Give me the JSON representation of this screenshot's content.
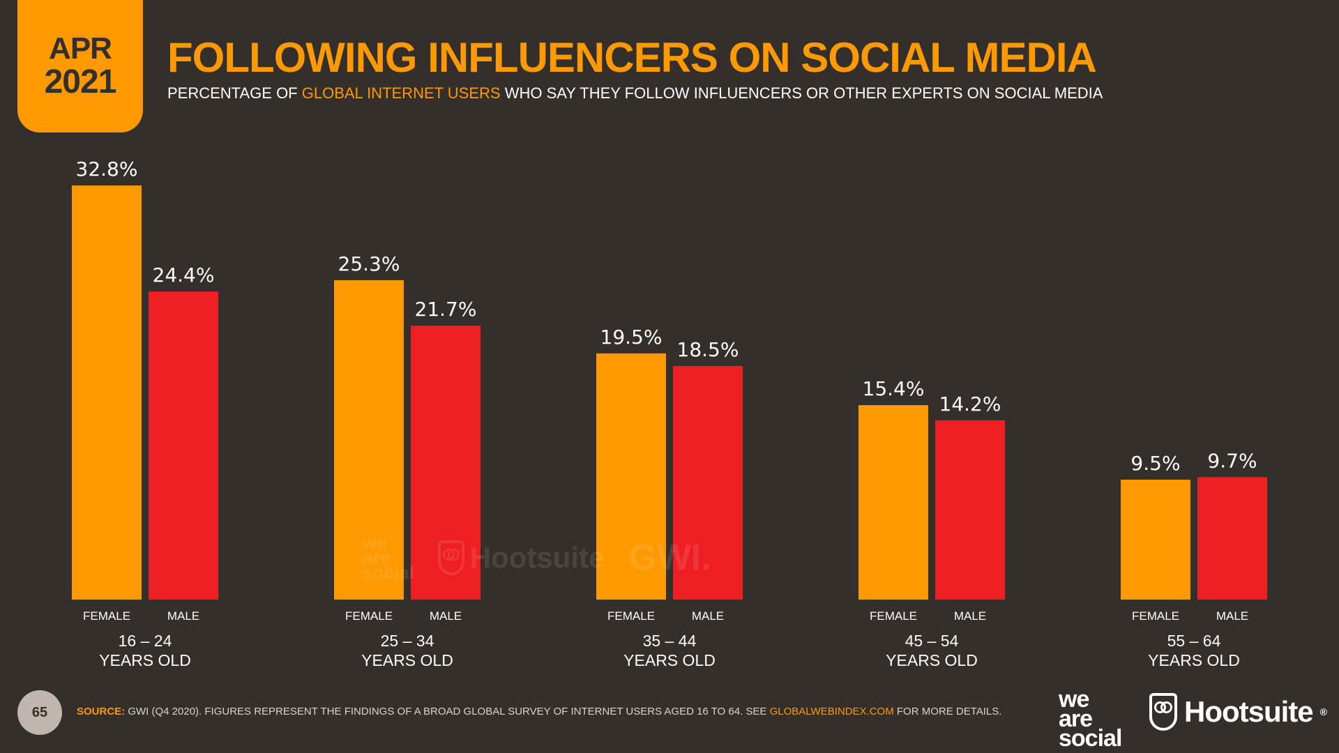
{
  "badge": {
    "month": "APR",
    "year": "2021"
  },
  "title": "FOLLOWING INFLUENCERS ON SOCIAL MEDIA",
  "subtitle": {
    "before": "PERCENTAGE OF ",
    "highlight": "GLOBAL INTERNET USERS",
    "after": " WHO SAY THEY FOLLOW INFLUENCERS OR OTHER EXPERTS ON SOCIAL MEDIA"
  },
  "colors": {
    "female": "#ff9900",
    "male": "#ee1f23",
    "background": "#352f2b",
    "accent": "#ff9900"
  },
  "chart_data": {
    "type": "bar",
    "title": "FOLLOWING INFLUENCERS ON SOCIAL MEDIA",
    "categories": [
      "16 – 24 YEARS OLD",
      "25 – 34 YEARS OLD",
      "35 – 44 YEARS OLD",
      "45 – 54 YEARS OLD",
      "55 – 64 YEARS OLD"
    ],
    "category_lines": [
      [
        "16 – 24",
        "YEARS OLD"
      ],
      [
        "25 – 34",
        "YEARS OLD"
      ],
      [
        "35 – 44",
        "YEARS OLD"
      ],
      [
        "45 – 54",
        "YEARS OLD"
      ],
      [
        "55 – 64",
        "YEARS OLD"
      ]
    ],
    "series": [
      {
        "name": "FEMALE",
        "values": [
          32.8,
          25.3,
          19.5,
          15.4,
          9.5
        ],
        "labels": [
          "32.8%",
          "25.3%",
          "19.5%",
          "15.4%",
          "9.5%"
        ]
      },
      {
        "name": "MALE",
        "values": [
          24.4,
          21.7,
          18.5,
          14.2,
          9.7
        ],
        "labels": [
          "24.4%",
          "21.7%",
          "18.5%",
          "14.2%",
          "9.7%"
        ]
      }
    ],
    "ylim": [
      0,
      32.8
    ],
    "grid": false,
    "legend": "none"
  },
  "watermark": {
    "we_are_social": [
      "we",
      "are",
      "social"
    ],
    "hootsuite": "Hootsuite",
    "gwi": "GWI."
  },
  "footer": {
    "page_number": "65",
    "source_label": "SOURCE:",
    "source_text": " GWI (Q4 2020). FIGURES REPRESENT THE FINDINGS OF A BROAD GLOBAL SURVEY OF INTERNET USERS AGED 16 TO 64. SEE ",
    "source_link": "GLOBALWEBINDEX.COM",
    "source_end": " FOR MORE DETAILS.",
    "logo_we_are_social": [
      "we",
      "are",
      "social"
    ],
    "logo_hootsuite": "Hootsuite",
    "logo_registered": "®"
  }
}
